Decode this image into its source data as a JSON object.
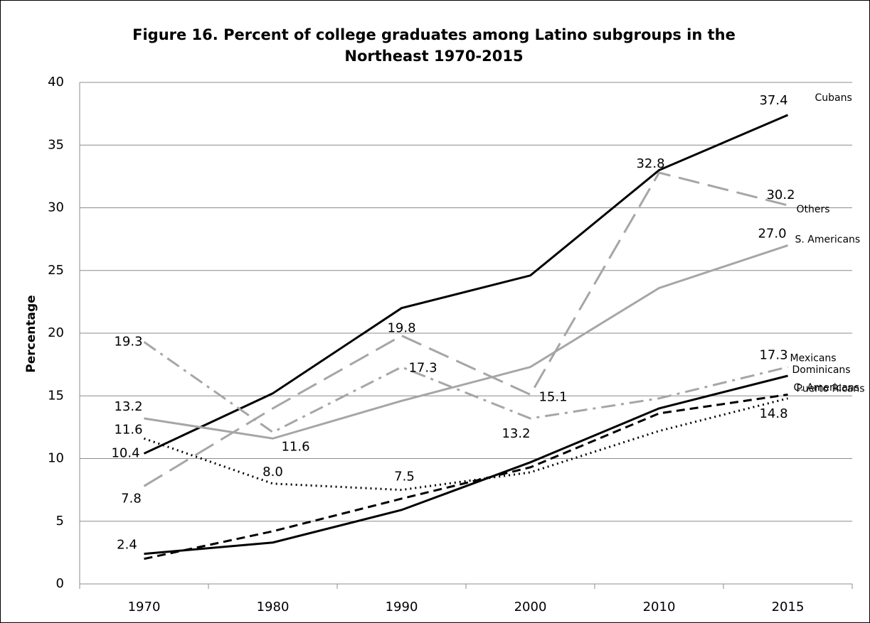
{
  "chart_data": {
    "type": "line",
    "title": [
      "Figure 16.  Percent of college graduates among Latino subgroups in the",
      "Northeast 1970-2015"
    ],
    "y_label": "Percentage",
    "categories": [
      "1970",
      "1980",
      "1990",
      "2000",
      "2010",
      "2015"
    ],
    "ylim": [
      0,
      40
    ],
    "yticks": [
      0,
      5,
      10,
      15,
      20,
      25,
      30,
      35,
      40
    ],
    "grid": true,
    "series": [
      {
        "name": "Cubans",
        "color": "#000000",
        "style": "solid",
        "values": [
          10.4,
          15.2,
          22.0,
          24.6,
          33.0,
          37.4
        ],
        "value_labels": [
          "10.4",
          null,
          null,
          null,
          null,
          "37.4"
        ]
      },
      {
        "name": "Others",
        "color": "#a6a6a6",
        "style": "dash",
        "values": [
          7.8,
          14.0,
          19.8,
          15.1,
          32.8,
          30.2
        ],
        "value_labels": [
          "7.8",
          null,
          "19.8",
          "15.1",
          "32.8",
          "30.2"
        ]
      },
      {
        "name": "S. Americans",
        "color": "#a6a6a6",
        "style": "solid",
        "values": [
          13.2,
          11.6,
          14.6,
          17.3,
          23.6,
          27.0
        ],
        "value_labels": [
          "13.2",
          "11.6",
          null,
          null,
          null,
          "27.0"
        ]
      },
      {
        "name": "Mexicans",
        "color": "#a6a6a6",
        "style": "dashdot",
        "values": [
          19.3,
          12.1,
          17.3,
          13.2,
          14.8,
          17.3
        ],
        "value_labels": [
          "19.3",
          null,
          "17.3",
          "13.2",
          null,
          "17.3"
        ]
      },
      {
        "name": "Dominicans",
        "color": "#000000",
        "style": "solid",
        "values": [
          2.4,
          3.3,
          5.9,
          9.7,
          14.0,
          16.6
        ],
        "value_labels": [
          "2.4",
          null,
          null,
          null,
          null,
          null
        ]
      },
      {
        "name": "Puerto Ricans",
        "color": "#000000",
        "style": "shortdash",
        "values": [
          2.0,
          4.2,
          6.8,
          9.3,
          13.6,
          15.1
        ],
        "value_labels": [
          null,
          null,
          null,
          null,
          null,
          null
        ]
      },
      {
        "name": "C. Americans",
        "color": "#000000",
        "style": "dot",
        "values": [
          11.6,
          8.0,
          7.5,
          8.9,
          12.2,
          14.8
        ],
        "value_labels": [
          "11.6",
          "8.0",
          "7.5",
          null,
          null,
          "14.8"
        ]
      }
    ]
  }
}
